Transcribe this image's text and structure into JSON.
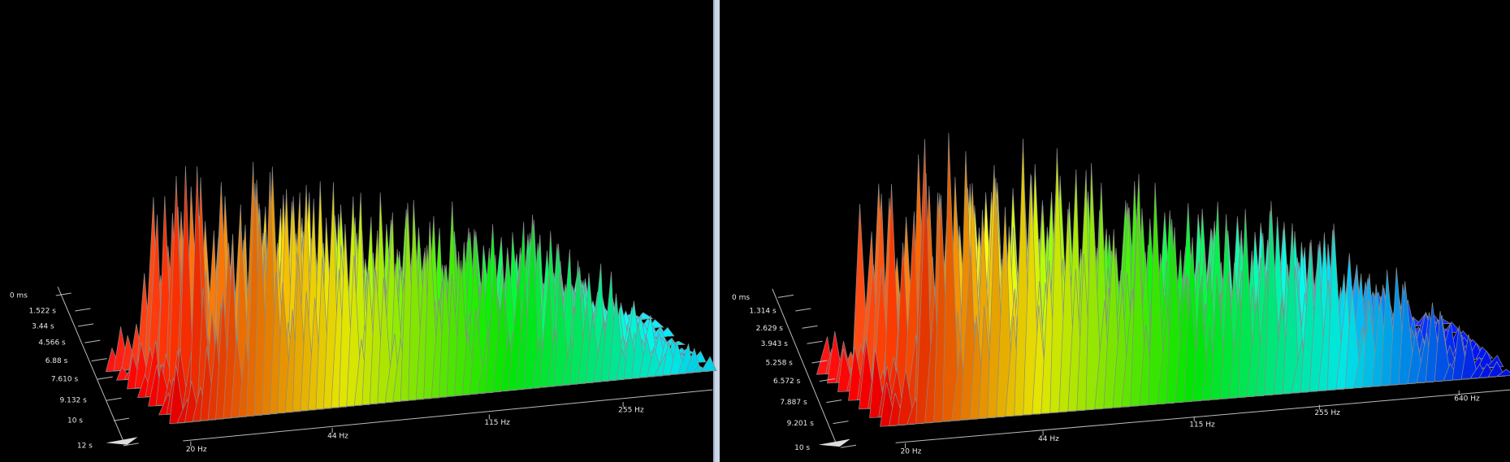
{
  "panels": [
    {
      "time_labels": [
        "0 ms",
        "1.522 s",
        "3.44 s",
        "4.566 s",
        "6.88 s",
        "7.610 s",
        "9.132 s",
        "10 s",
        "12 s"
      ],
      "freq_labels": [
        "20 Hz",
        "44 Hz",
        "115 Hz",
        "255 Hz"
      ]
    },
    {
      "time_labels": [
        "0 ms",
        "1.314 s",
        "2.629 s",
        "3.943 s",
        "5.258 s",
        "6.572 s",
        "7.887 s",
        "9.201 s",
        "10 s"
      ],
      "freq_labels": [
        "20 Hz",
        "44 Hz",
        "115 Hz",
        "255 Hz",
        "640 Hz"
      ]
    }
  ]
}
